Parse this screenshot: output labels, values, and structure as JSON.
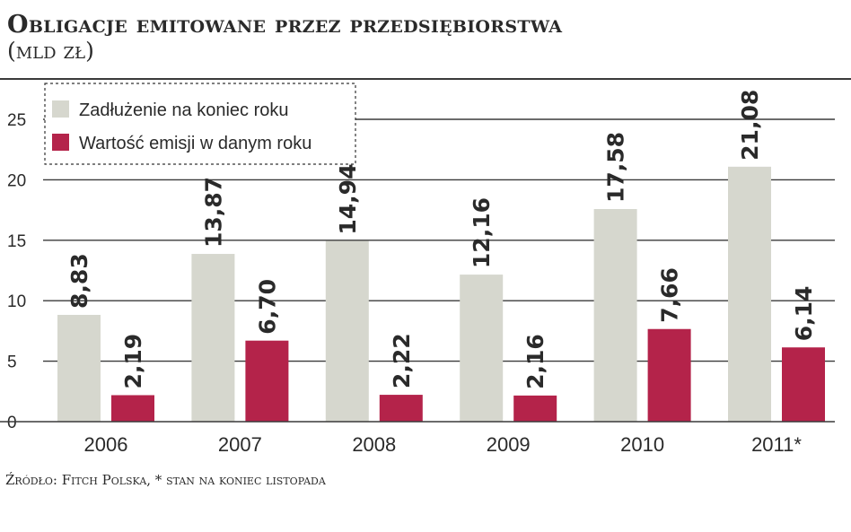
{
  "header": {
    "title": "Obligacje emitowane przez przedsiębiorstwa",
    "subtitle": "(mld zł)"
  },
  "footer": {
    "source": "Źródło: Fitch Polska, * stan na koniec listopada"
  },
  "colors": {
    "debt": "#d6d7ce",
    "issue": "#b4234a",
    "grid": "#3a3a3a"
  },
  "chart_data": {
    "type": "bar",
    "title": "Obligacje emitowane przez przedsiębiorstwa",
    "subtitle": "(mld zł)",
    "categories": [
      "2006",
      "2007",
      "2008",
      "2009",
      "2010",
      "2011*"
    ],
    "series": [
      {
        "name": "Zadłużenie na koniec roku",
        "values": [
          8.83,
          13.87,
          14.94,
          12.16,
          17.58,
          21.08
        ],
        "labels": [
          "8,83",
          "13,87",
          "14,94",
          "12,16",
          "17,58",
          "21,08"
        ]
      },
      {
        "name": "Wartość emisji w danym roku",
        "values": [
          2.19,
          6.7,
          2.22,
          2.16,
          7.66,
          6.14
        ],
        "labels": [
          "2,19",
          "6,70",
          "2,22",
          "2,16",
          "7,66",
          "6,14"
        ]
      }
    ],
    "yticks": [
      "0",
      "5",
      "10",
      "15",
      "20",
      "25"
    ],
    "ylim": [
      0,
      25
    ],
    "grid": true,
    "legend": "top-left"
  }
}
